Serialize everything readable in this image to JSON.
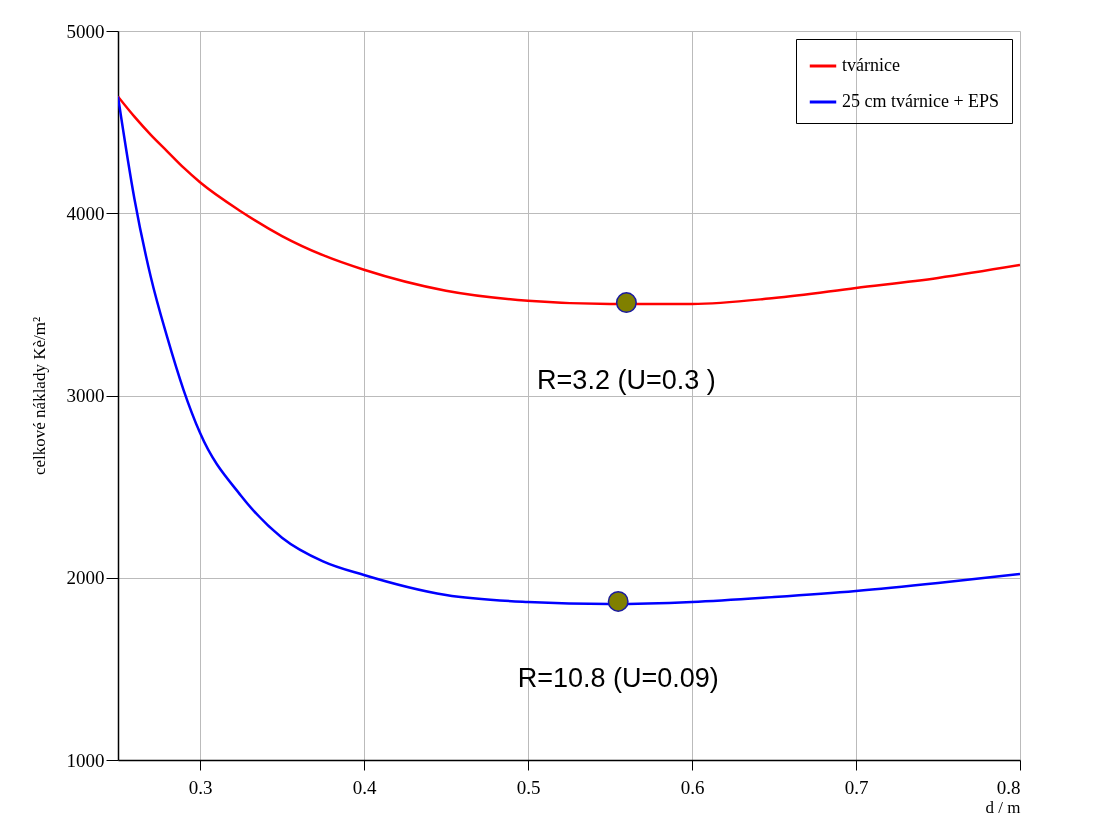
{
  "chart_data": {
    "type": "line",
    "ylabel": "celkové náklady Kè/m²",
    "xlabel": "d / m",
    "x": [
      0.25,
      0.26,
      0.27,
      0.28,
      0.29,
      0.3,
      0.325,
      0.35,
      0.375,
      0.4,
      0.45,
      0.5,
      0.55,
      0.6,
      0.65,
      0.7,
      0.75,
      0.8
    ],
    "series": [
      {
        "name": "tvárnice",
        "color": "#ff0000",
        "values": [
          4640,
          4530,
          4430,
          4340,
          4250,
          4170,
          4010,
          3875,
          3770,
          3690,
          3575,
          3520,
          3502,
          3502,
          3535,
          3590,
          3645,
          3716
        ]
      },
      {
        "name": "25 cm tvárnice + EPS",
        "color": "#0000ff",
        "values": [
          4640,
          4080,
          3650,
          3320,
          3030,
          2795,
          2450,
          2220,
          2090,
          2015,
          1905,
          1867,
          1856,
          1867,
          1894,
          1927,
          1971,
          2021
        ]
      },
      {
        "type": "scatter",
        "color": "#808000",
        "x": [
          0.56,
          0.555
        ],
        "values": [
          3510,
          1870
        ]
      }
    ],
    "xlim": [
      0.25,
      0.8
    ],
    "xticks": [
      0.3,
      0.4,
      0.5,
      0.6,
      0.7,
      0.8
    ],
    "ylim": [
      1000,
      5000
    ],
    "yticks": [
      1000,
      2000,
      3000,
      4000,
      5000
    ],
    "grid": true,
    "legend": "top right",
    "line_style": "solid",
    "annotations": [
      {
        "text": "R=3.2 (U=0.3 )",
        "x": 0.56,
        "y": 3510
      },
      {
        "text": "R=10.8  (U=0.09)",
        "x": 0.555,
        "y": 1870
      }
    ]
  }
}
